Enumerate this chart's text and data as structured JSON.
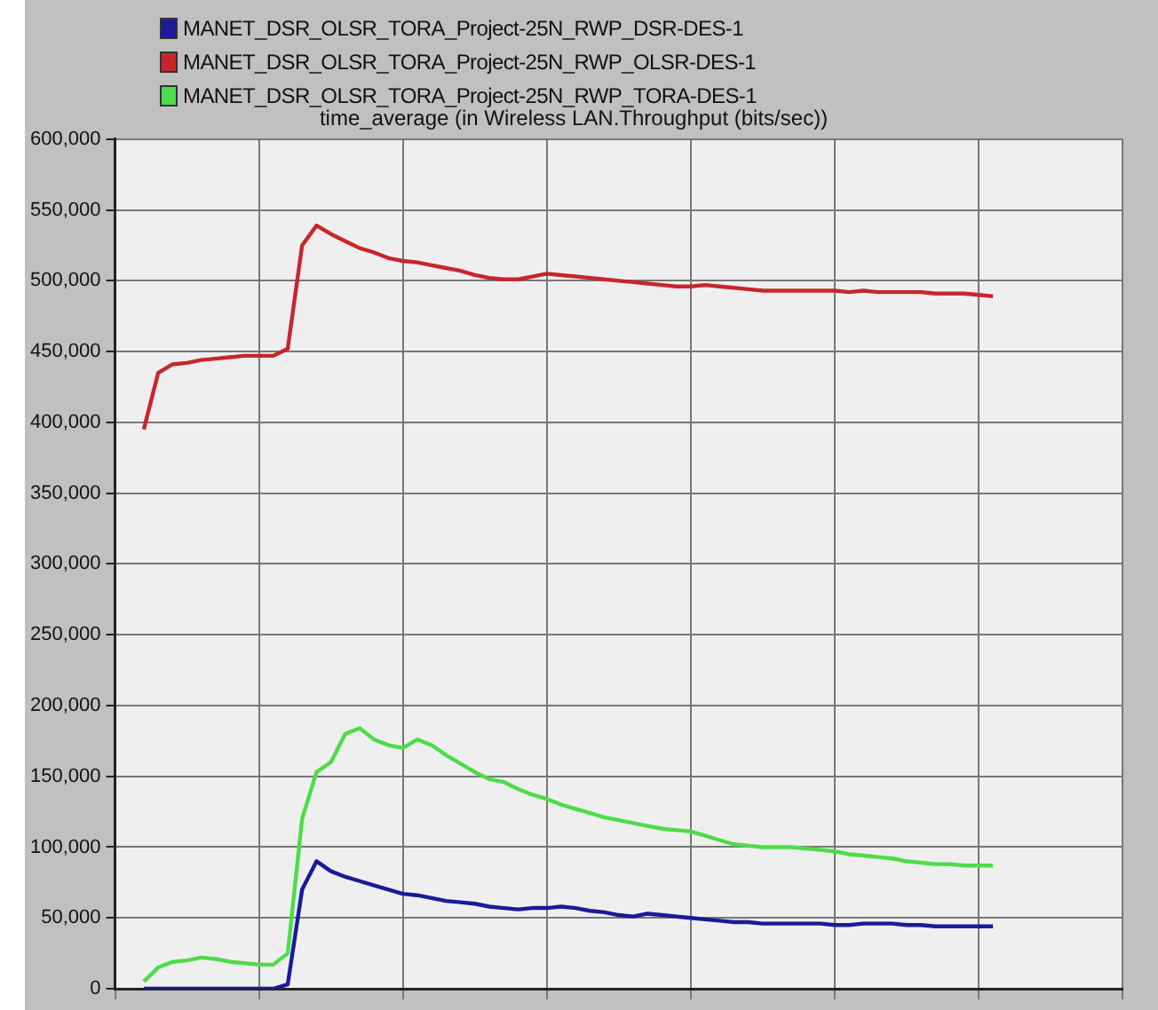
{
  "chart_data": {
    "type": "line",
    "title": "time_average (in Wireless LAN.Throughput (bits/sec))",
    "categories": [
      null,
      null,
      null,
      null,
      null,
      null,
      null,
      null,
      null,
      null,
      null,
      null,
      null,
      null,
      null,
      null,
      null,
      null,
      null,
      null,
      null,
      null,
      null,
      null,
      null,
      null,
      null,
      null,
      null,
      null,
      null,
      null,
      null,
      null,
      null,
      null,
      null,
      null,
      null,
      null,
      null,
      null,
      null,
      null,
      null,
      null,
      null,
      null,
      null,
      null,
      null,
      null,
      null,
      null,
      null,
      null,
      null,
      null,
      null,
      null,
      null,
      null,
      null,
      null,
      null,
      null,
      null,
      null,
      null,
      null,
      null
    ],
    "series": [
      {
        "name": "MANET_DSR_OLSR_TORA_Project-25N_RWP_DSR-DES-1",
        "color": "#1a1a9a",
        "values": [
          null,
          null,
          0,
          0,
          0,
          0,
          0,
          0,
          0,
          0,
          0,
          0,
          3000,
          70000,
          90000,
          83000,
          79000,
          76000,
          73000,
          70000,
          67000,
          66000,
          64000,
          62000,
          61000,
          60000,
          58000,
          57000,
          56000,
          57000,
          57000,
          58000,
          57000,
          55000,
          54000,
          52000,
          51000,
          53000,
          52000,
          51000,
          50000,
          49000,
          48000,
          47000,
          47000,
          46000,
          46000,
          46000,
          46000,
          46000,
          45000,
          45000,
          46000,
          46000,
          46000,
          45000,
          45000,
          44000,
          44000,
          44000,
          44000,
          44000,
          null,
          null,
          null,
          null,
          null,
          null,
          null,
          null,
          null
        ]
      },
      {
        "name": "MANET_DSR_OLSR_TORA_Project-25N_RWP_OLSR-DES-1",
        "color": "#c8262a",
        "values": [
          null,
          null,
          395000,
          435000,
          441000,
          442000,
          444000,
          445000,
          446000,
          447000,
          447000,
          447000,
          452000,
          525000,
          539000,
          533000,
          528000,
          523000,
          520000,
          516000,
          514000,
          513000,
          511000,
          509000,
          507000,
          504000,
          502000,
          501000,
          501000,
          503000,
          505000,
          504000,
          503000,
          502000,
          501000,
          500000,
          499000,
          498000,
          497000,
          496000,
          496000,
          497000,
          496000,
          495000,
          494000,
          493000,
          493000,
          493000,
          493000,
          493000,
          493000,
          492000,
          493000,
          492000,
          492000,
          492000,
          492000,
          491000,
          491000,
          491000,
          490000,
          489000,
          null,
          null,
          null,
          null,
          null,
          null,
          null,
          null,
          null
        ]
      },
      {
        "name": "MANET_DSR_OLSR_TORA_Project-25N_RWP_TORA-DES-1",
        "color": "#4ddc4a",
        "values": [
          null,
          null,
          5000,
          15000,
          19000,
          20000,
          22000,
          21000,
          19000,
          18000,
          17000,
          17000,
          25000,
          120000,
          153000,
          160000,
          180000,
          184000,
          176000,
          172000,
          170000,
          176000,
          172000,
          165000,
          159000,
          153000,
          148000,
          146000,
          141000,
          137000,
          134000,
          130000,
          127000,
          124000,
          121000,
          119000,
          117000,
          115000,
          113000,
          112000,
          111000,
          108000,
          105000,
          102000,
          101000,
          100000,
          100000,
          100000,
          99000,
          98000,
          97000,
          95000,
          94000,
          93000,
          92000,
          90000,
          89000,
          88000,
          88000,
          87000,
          87000,
          87000,
          null,
          null,
          null,
          null,
          null,
          null,
          null,
          null,
          null
        ]
      }
    ],
    "ylim": [
      0,
      600000
    ],
    "yticks": [
      0,
      {
        "value": 50000,
        "label": "50,000"
      },
      {
        "value": 100000,
        "label": "100,000"
      },
      {
        "value": 150000,
        "label": "150,000"
      },
      {
        "value": 200000,
        "label": "200,000"
      },
      {
        "value": 250000,
        "label": "250,000"
      },
      {
        "value": 300000,
        "label": "300,000"
      },
      {
        "value": 350000,
        "label": "350,000"
      },
      {
        "value": 400000,
        "label": "400,000"
      },
      {
        "value": 450000,
        "label": "450,000"
      },
      {
        "value": 500000,
        "label": "500,000"
      },
      {
        "value": 550000,
        "label": "550,000"
      },
      {
        "value": 600000,
        "label": "600,000"
      }
    ],
    "grid": true,
    "legend": "top",
    "tick_labels": "y",
    "marker": "none",
    "line_style": "solid"
  }
}
